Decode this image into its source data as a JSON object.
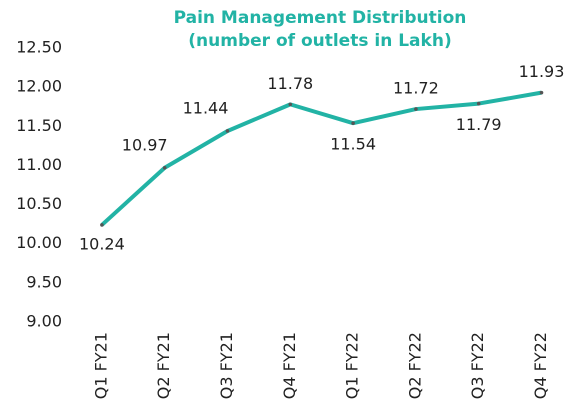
{
  "chart_data": {
    "type": "line",
    "title": "Pain Management Distribution",
    "subtitle": "(number of outlets in Lakh)",
    "categories": [
      "Q1 FY21",
      "Q2 FY21",
      "Q3 FY21",
      "Q4 FY21",
      "Q1 FY22",
      "Q2 FY22",
      "Q3 FY22",
      "Q4 FY22"
    ],
    "values": [
      10.24,
      10.97,
      11.44,
      11.78,
      11.54,
      11.72,
      11.79,
      11.93
    ],
    "color": "#22b3a5",
    "ylim": [
      9,
      12.5
    ],
    "yticks": [
      {
        "value": 9,
        "label": "9.00"
      },
      {
        "value": 9.5,
        "label": "9.50"
      },
      {
        "value": 10,
        "label": "10.00"
      },
      {
        "value": 10.5,
        "label": "10.50"
      },
      {
        "value": 11,
        "label": "11.00"
      },
      {
        "value": 11.5,
        "label": "11.50"
      },
      {
        "value": 12,
        "label": "12.00"
      },
      {
        "value": 12.5,
        "label": "12.50"
      }
    ],
    "grid": false
  }
}
